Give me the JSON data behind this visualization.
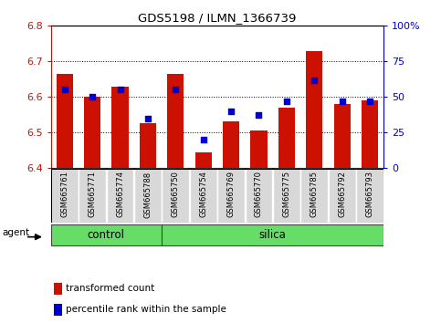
{
  "title": "GDS5198 / ILMN_1366739",
  "samples": [
    "GSM665761",
    "GSM665771",
    "GSM665774",
    "GSM665788",
    "GSM665750",
    "GSM665754",
    "GSM665769",
    "GSM665770",
    "GSM665775",
    "GSM665785",
    "GSM665792",
    "GSM665793"
  ],
  "groups": [
    "control",
    "control",
    "control",
    "control",
    "silica",
    "silica",
    "silica",
    "silica",
    "silica",
    "silica",
    "silica",
    "silica"
  ],
  "red_values": [
    6.665,
    6.6,
    6.63,
    6.525,
    6.665,
    6.445,
    6.53,
    6.505,
    6.57,
    6.73,
    6.58,
    6.59
  ],
  "blue_values_pct": [
    55,
    50,
    55,
    35,
    55,
    20,
    40,
    37,
    47,
    62,
    47,
    47
  ],
  "ymin": 6.4,
  "ymax": 6.8,
  "bar_base": 6.4,
  "bar_color": "#cc1100",
  "dot_color": "#0000cc",
  "group_color": "#66dd66",
  "ytick_color": "#cc1100",
  "y2tick_color": "#0000cc",
  "bg_color": "#ffffff",
  "bar_width": 0.6,
  "dot_size": 18,
  "y2min": 0,
  "y2max": 100,
  "y2ticks": [
    0,
    25,
    50,
    75,
    100
  ],
  "y2labels": [
    "0",
    "25",
    "50",
    "75",
    "100%"
  ],
  "yticks": [
    6.4,
    6.5,
    6.6,
    6.7,
    6.8
  ],
  "grid_vals": [
    6.5,
    6.6,
    6.7
  ]
}
